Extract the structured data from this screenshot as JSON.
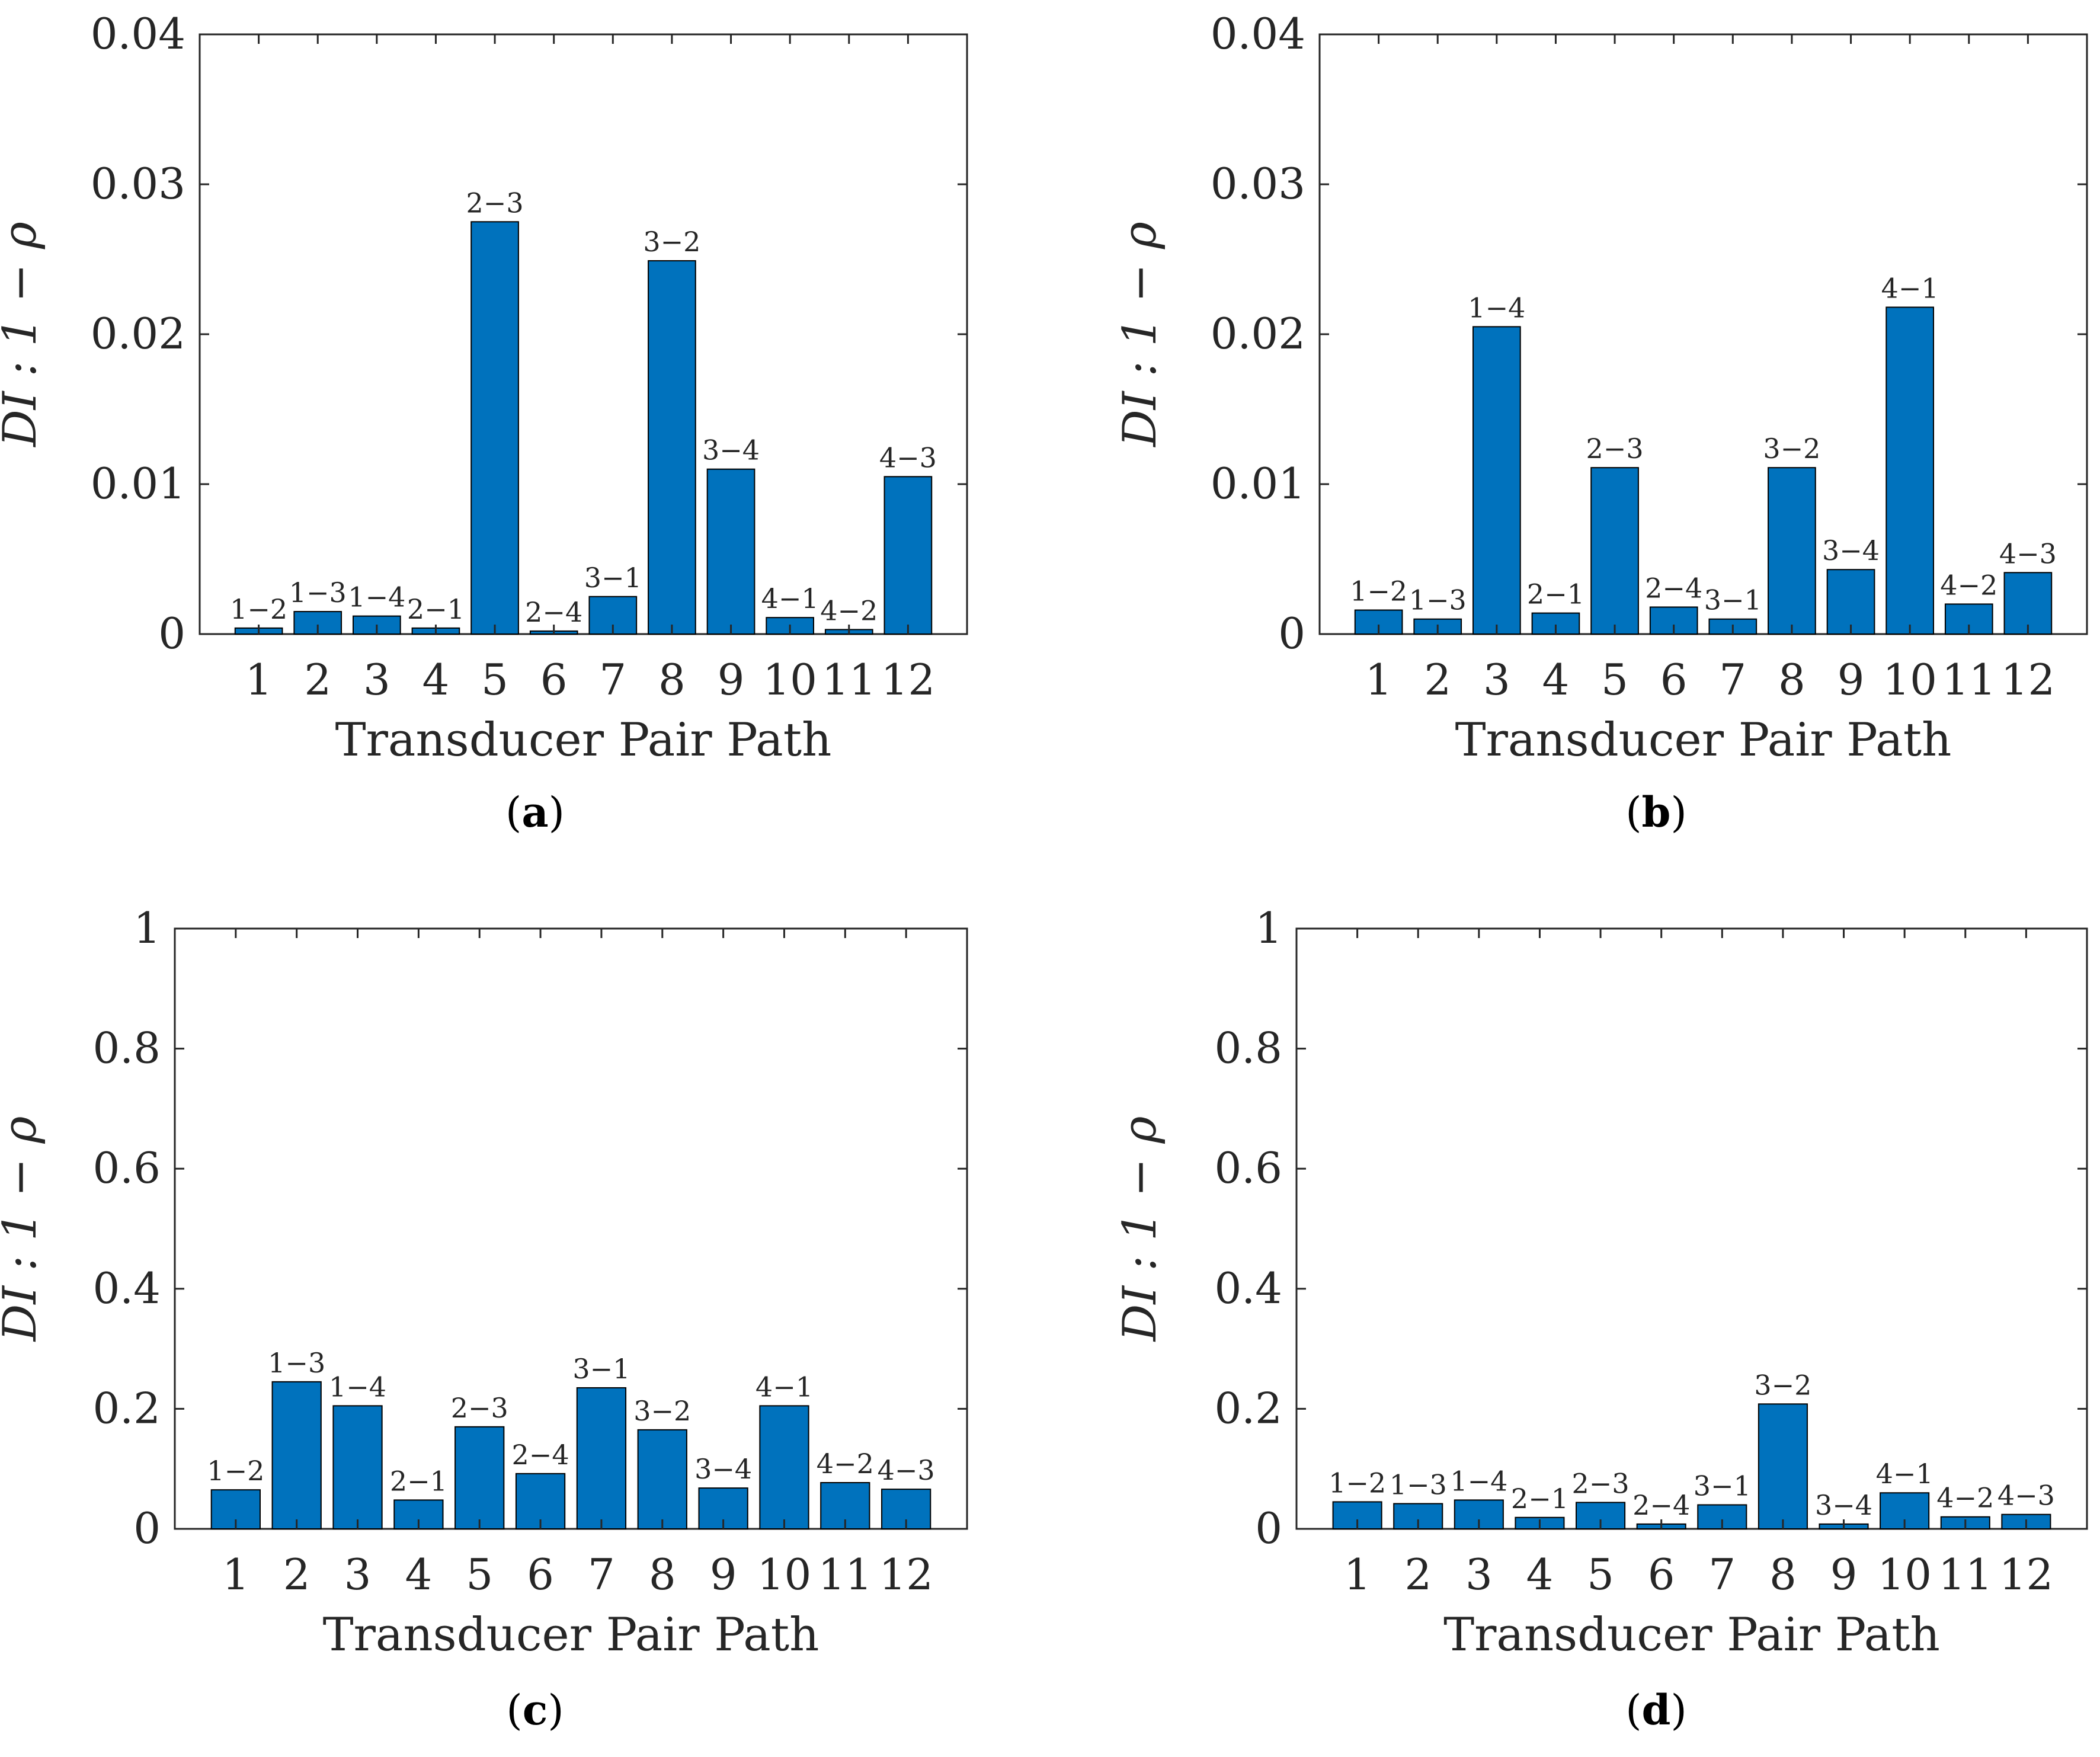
{
  "chart_data": [
    {
      "type": "bar",
      "panel": "a",
      "caption": "(a)",
      "caption_letter": "a",
      "xlabel": "Transducer Pair Path",
      "ylabel": "DI : 1 − ρ",
      "ylim": [
        0,
        0.04
      ],
      "yticks": [
        0,
        0.01,
        0.02,
        0.03,
        0.04
      ],
      "ytick_labels": [
        "0",
        "0.01",
        "0.02",
        "0.03",
        "0.04"
      ],
      "categories": [
        "1",
        "2",
        "3",
        "4",
        "5",
        "6",
        "7",
        "8",
        "9",
        "10",
        "11",
        "12"
      ],
      "bar_labels": [
        "1−2",
        "1−3",
        "1−4",
        "2−1",
        "2−3",
        "2−4",
        "3−1",
        "3−2",
        "3−4",
        "4−1",
        "4−2",
        "4−3"
      ],
      "values": [
        0.0004,
        0.0015,
        0.0012,
        0.0004,
        0.0275,
        0.0002,
        0.0025,
        0.0249,
        0.011,
        0.0011,
        0.0003,
        0.0105
      ],
      "color": "#0072BD"
    },
    {
      "type": "bar",
      "panel": "b",
      "caption": "(b)",
      "caption_letter": "b",
      "xlabel": "Transducer Pair Path",
      "ylabel": "DI : 1 − ρ",
      "ylim": [
        0,
        0.04
      ],
      "yticks": [
        0,
        0.01,
        0.02,
        0.03,
        0.04
      ],
      "ytick_labels": [
        "0",
        "0.01",
        "0.02",
        "0.03",
        "0.04"
      ],
      "categories": [
        "1",
        "2",
        "3",
        "4",
        "5",
        "6",
        "7",
        "8",
        "9",
        "10",
        "11",
        "12"
      ],
      "bar_labels": [
        "1−2",
        "1−3",
        "1−4",
        "2−1",
        "2−3",
        "2−4",
        "3−1",
        "3−2",
        "3−4",
        "4−1",
        "4−2",
        "4−3"
      ],
      "values": [
        0.0016,
        0.001,
        0.0205,
        0.0014,
        0.0111,
        0.0018,
        0.001,
        0.0111,
        0.0043,
        0.0218,
        0.002,
        0.0041
      ],
      "color": "#0072BD"
    },
    {
      "type": "bar",
      "panel": "c",
      "caption": "(c)",
      "caption_letter": "c",
      "xlabel": "Transducer Pair Path",
      "ylabel": "DI : 1 − ρ",
      "ylim": [
        0,
        1
      ],
      "yticks": [
        0,
        0.2,
        0.4,
        0.6,
        0.8,
        1
      ],
      "ytick_labels": [
        "0",
        "0.2",
        "0.4",
        "0.6",
        "0.8",
        "1"
      ],
      "categories": [
        "1",
        "2",
        "3",
        "4",
        "5",
        "6",
        "7",
        "8",
        "9",
        "10",
        "11",
        "12"
      ],
      "bar_labels": [
        "1−2",
        "1−3",
        "1−4",
        "2−1",
        "2−3",
        "2−4",
        "3−1",
        "3−2",
        "3−4",
        "4−1",
        "4−2",
        "4−3"
      ],
      "values": [
        0.065,
        0.245,
        0.205,
        0.048,
        0.17,
        0.092,
        0.235,
        0.165,
        0.068,
        0.205,
        0.077,
        0.066
      ],
      "color": "#0072BD"
    },
    {
      "type": "bar",
      "panel": "d",
      "caption": "(d)",
      "caption_letter": "d",
      "xlabel": "Transducer Pair Path",
      "ylabel": "DI : 1 − ρ",
      "ylim": [
        0,
        1
      ],
      "yticks": [
        0,
        0.2,
        0.4,
        0.6,
        0.8,
        1
      ],
      "ytick_labels": [
        "0",
        "0.2",
        "0.4",
        "0.6",
        "0.8",
        "1"
      ],
      "categories": [
        "1",
        "2",
        "3",
        "4",
        "5",
        "6",
        "7",
        "8",
        "9",
        "10",
        "11",
        "12"
      ],
      "bar_labels": [
        "1−2",
        "1−3",
        "1−4",
        "2−1",
        "2−3",
        "2−4",
        "3−1",
        "3−2",
        "3−4",
        "4−1",
        "4−2",
        "4−3"
      ],
      "values": [
        0.045,
        0.042,
        0.048,
        0.019,
        0.044,
        0.008,
        0.04,
        0.208,
        0.008,
        0.06,
        0.02,
        0.024
      ],
      "color": "#0072BD"
    }
  ]
}
